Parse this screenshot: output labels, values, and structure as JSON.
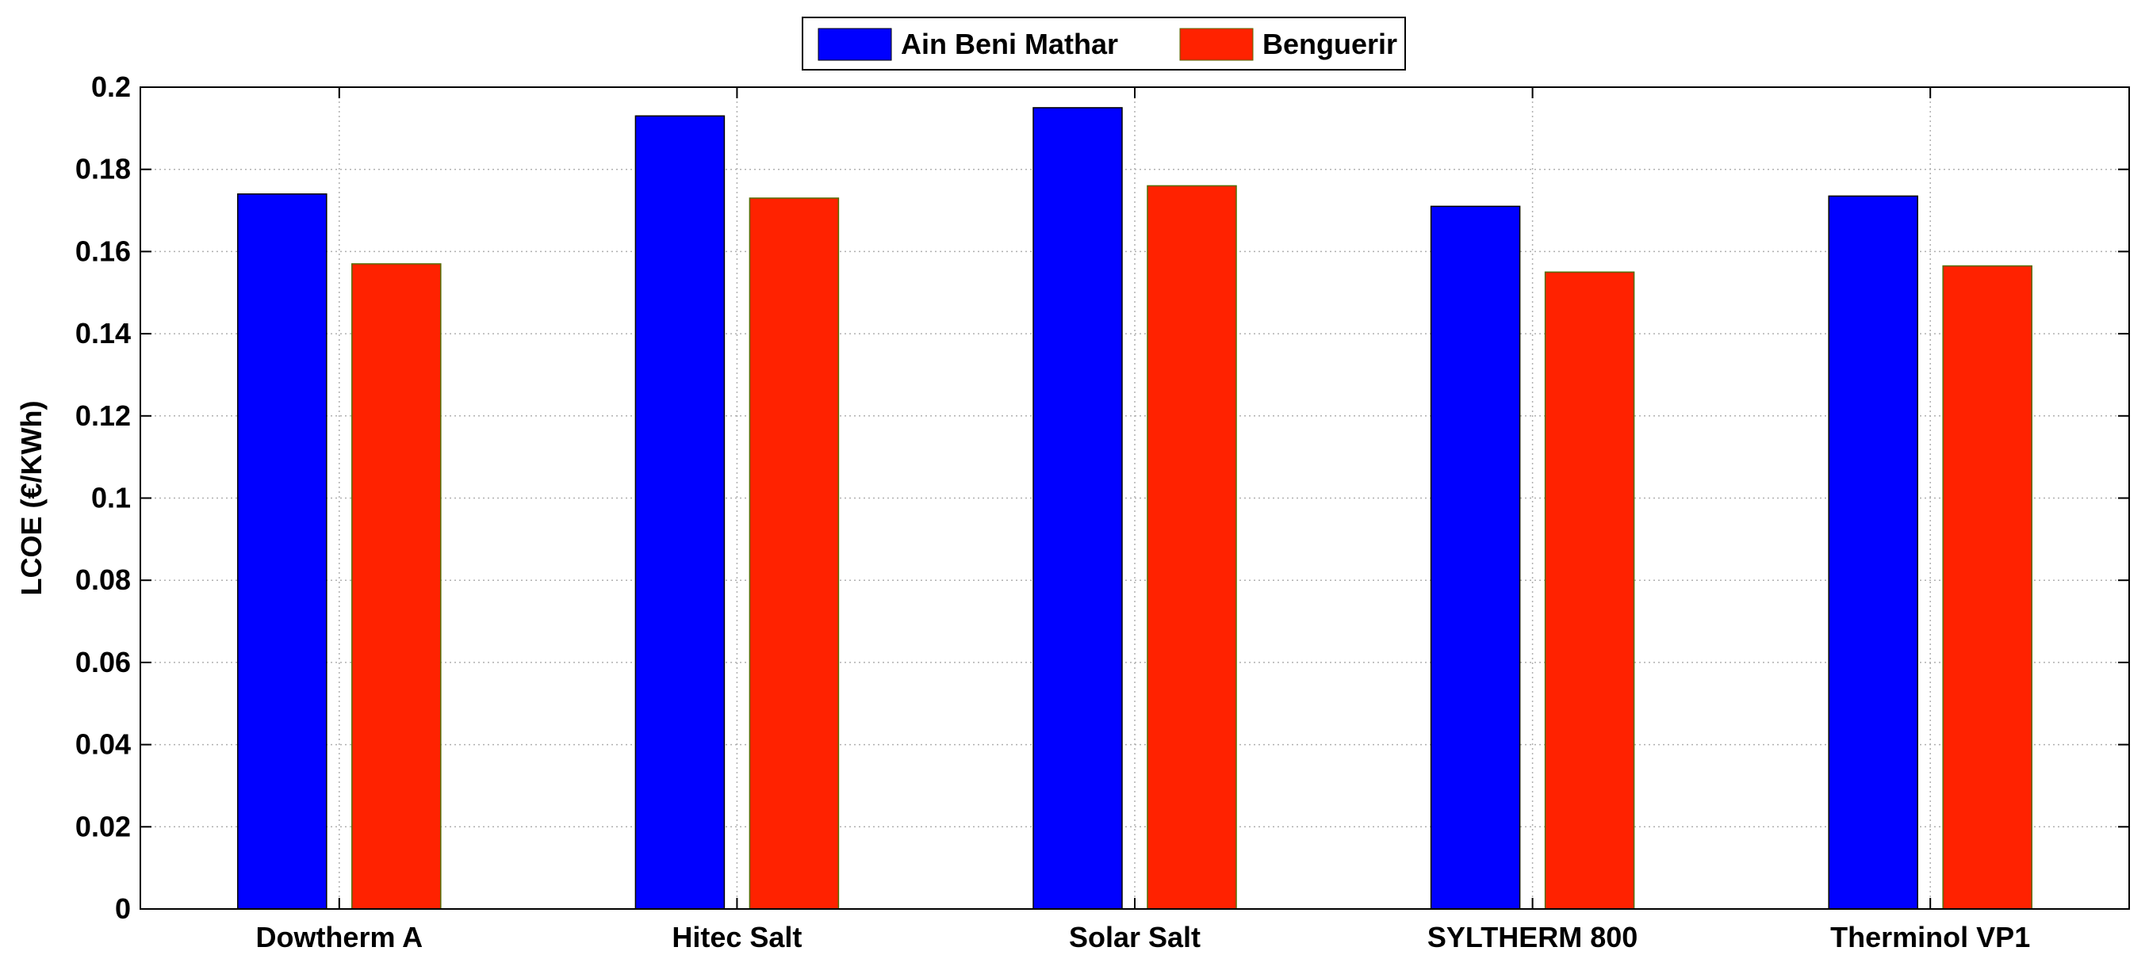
{
  "chart_data": {
    "type": "bar",
    "categories": [
      "Dowtherm A",
      "Hitec Salt",
      "Solar Salt",
      "SYLTHERM 800",
      "Therminol VP1"
    ],
    "series": [
      {
        "name": "Ain Beni Mathar",
        "color": "#0000ff",
        "values": [
          0.174,
          0.193,
          0.195,
          0.171,
          0.1735
        ]
      },
      {
        "name": "Benguerir",
        "color": "#ff2200",
        "values": [
          0.157,
          0.173,
          0.176,
          0.155,
          0.1565
        ]
      }
    ],
    "ylabel": "LCOE (€/KWh)",
    "xlabel": "",
    "ylim": [
      0,
      0.2
    ],
    "yticks": [
      "0",
      "0.02",
      "0.04",
      "0.06",
      "0.08",
      "0.1",
      "0.12",
      "0.14",
      "0.16",
      "0.18",
      "0.2"
    ],
    "grid": true,
    "legend_position": "top-center"
  }
}
